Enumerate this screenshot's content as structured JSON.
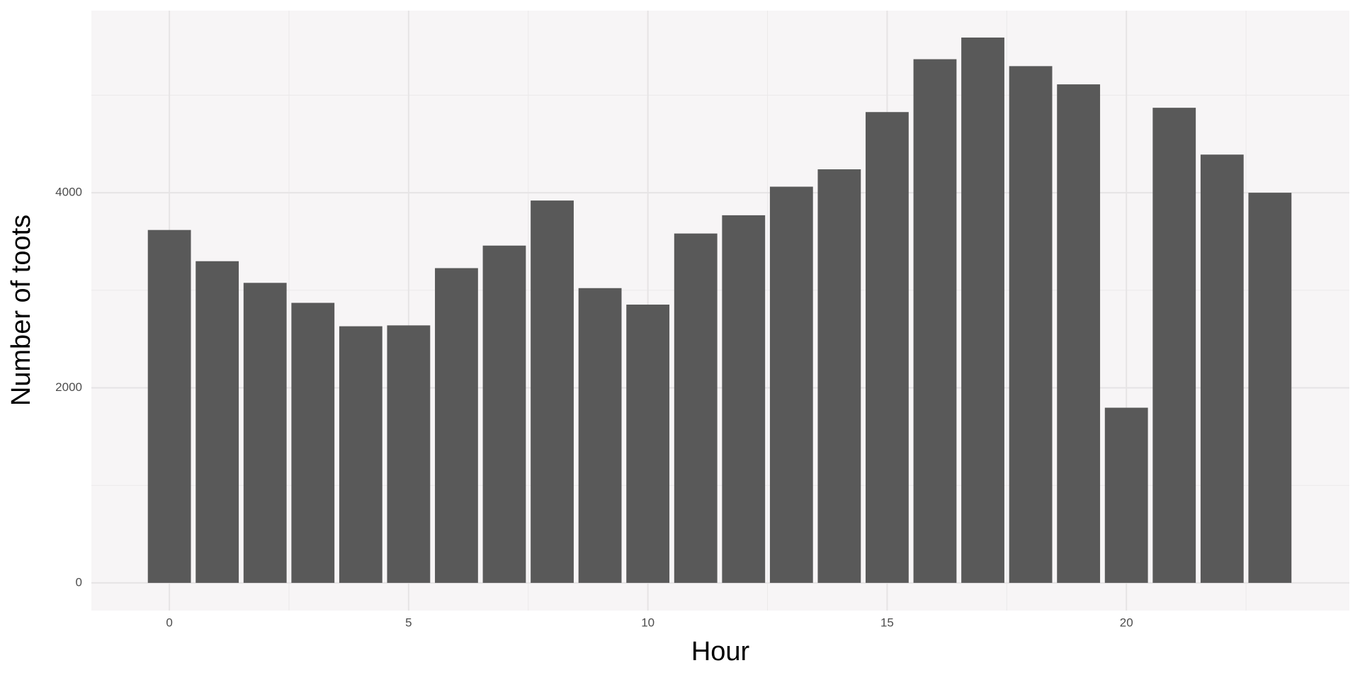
{
  "chart_data": {
    "type": "bar",
    "x_label": "Hour",
    "y_label": "Number of toots",
    "x": [
      0,
      1,
      2,
      3,
      4,
      5,
      6,
      7,
      8,
      9,
      10,
      11,
      12,
      13,
      14,
      15,
      16,
      17,
      18,
      19,
      20,
      21,
      22,
      23
    ],
    "values": [
      3618,
      3298,
      3076,
      2871,
      2631,
      2640,
      3227,
      3458,
      3920,
      3022,
      2853,
      3582,
      3769,
      4062,
      4240,
      4827,
      5369,
      5591,
      5298,
      5111,
      1796,
      4871,
      4391,
      4000
    ],
    "color": "#595959",
    "xlim": [
      -1.63,
      24.66
    ],
    "xticks": [
      0,
      5,
      10,
      15,
      20
    ],
    "ylim": [
      -284,
      5867
    ],
    "yticks": [
      0,
      2000,
      4000
    ],
    "grid": true,
    "minor_grid": true
  }
}
